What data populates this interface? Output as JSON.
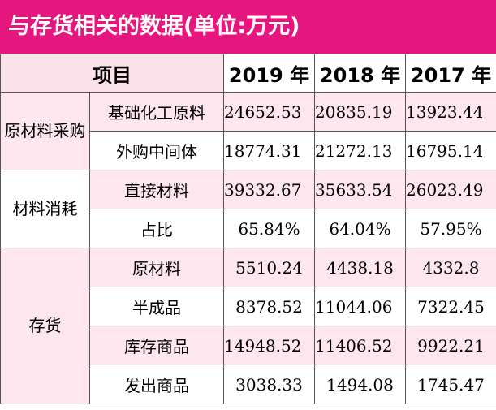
{
  "title": "与存货相关的数据(单位:万元)",
  "colors": {
    "title_bg": "#e5167e",
    "row_pink": "#fde6ee"
  },
  "header": {
    "item": "项目",
    "years": [
      "2019 年",
      "2018 年",
      "2017 年"
    ]
  },
  "groups": [
    {
      "label": "原材料采购",
      "rows": [
        {
          "label": "基础化工原料",
          "values": [
            "24652.53",
            "20835.19",
            "13923.44"
          ]
        },
        {
          "label": "外购中间体",
          "values": [
            "18774.31",
            "21272.13",
            "16795.14"
          ]
        }
      ]
    },
    {
      "label": "材料消耗",
      "rows": [
        {
          "label": "直接材料",
          "values": [
            "39332.67",
            "35633.54",
            "26023.49"
          ]
        },
        {
          "label": "占比",
          "values": [
            "65.84%",
            "64.04%",
            "57.95%"
          ]
        }
      ]
    },
    {
      "label": "存货",
      "rows": [
        {
          "label": "原材料",
          "values": [
            "5510.24",
            "4438.18",
            "4332.8"
          ]
        },
        {
          "label": "半成品",
          "values": [
            "8378.52",
            "11044.06",
            "7322.45"
          ]
        },
        {
          "label": "库存商品",
          "values": [
            "14948.52",
            "11406.52",
            "9922.21"
          ]
        },
        {
          "label": "发出商品",
          "values": [
            "3038.33",
            "1494.08",
            "1745.47"
          ]
        }
      ]
    }
  ]
}
